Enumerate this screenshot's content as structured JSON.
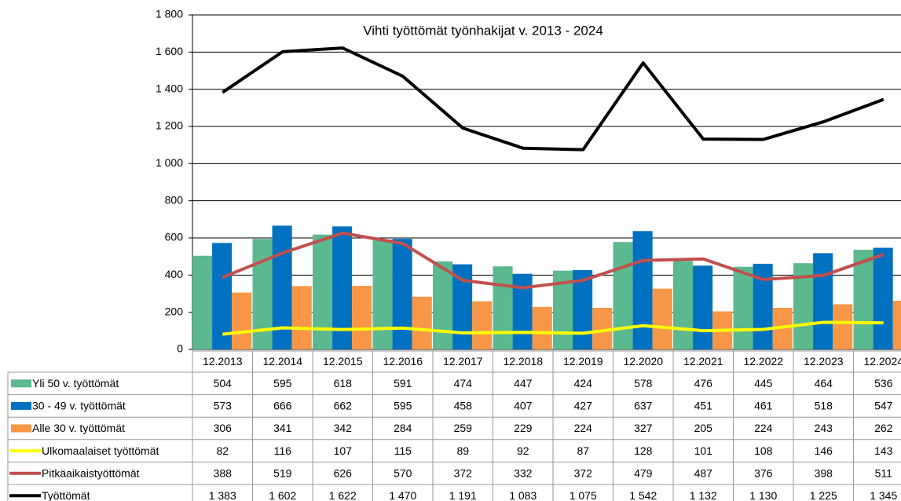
{
  "chart_data": {
    "type": "bar",
    "title": "Vihti työttömät työnhakijat v. 2013 - 2024",
    "categories": [
      "12.2013",
      "12.2014",
      "12.2015",
      "12.2016",
      "12.2017",
      "12.2018",
      "12.2019",
      "12.2020",
      "12.2021",
      "12.2022",
      "12.2023",
      "12.2024"
    ],
    "ylim": [
      0,
      1800
    ],
    "yticks": [
      0,
      200,
      400,
      600,
      800,
      {
        "value": 1000,
        "label": "1 000"
      },
      {
        "value": 1200,
        "label": "1 200"
      },
      {
        "value": 1400,
        "label": "1 400"
      },
      {
        "value": 1600,
        "label": "1 600"
      },
      {
        "value": 1800,
        "label": "1 800"
      }
    ],
    "grid": true,
    "series": [
      {
        "name": "Yli 50 v. työttömät",
        "type": "bar",
        "color": "#5cb88e",
        "values": [
          504,
          595,
          618,
          591,
          474,
          447,
          424,
          578,
          476,
          445,
          464,
          536
        ]
      },
      {
        "name": "30 - 49 v. työttömät",
        "type": "bar",
        "color": "#0070c0",
        "values": [
          573,
          666,
          662,
          595,
          458,
          407,
          427,
          637,
          451,
          461,
          518,
          547
        ]
      },
      {
        "name": "Alle 30 v. työttömät",
        "type": "bar",
        "color": "#f79646",
        "values": [
          306,
          341,
          342,
          284,
          259,
          229,
          224,
          327,
          205,
          224,
          243,
          262
        ]
      },
      {
        "name": "Ulkomaalaiset työttömät",
        "type": "line",
        "color": "#ffff00",
        "values": [
          82,
          116,
          107,
          115,
          89,
          92,
          87,
          128,
          101,
          108,
          146,
          143
        ]
      },
      {
        "name": "Pitkäaikaistyöttömät",
        "type": "line",
        "color": "#c0504d",
        "values": [
          388,
          519,
          626,
          570,
          372,
          332,
          372,
          479,
          487,
          376,
          398,
          511
        ]
      },
      {
        "name": "Työttömät",
        "type": "line",
        "color": "#000000",
        "values": [
          1383,
          1602,
          1622,
          1470,
          1191,
          1083,
          1075,
          1542,
          1132,
          1130,
          1225,
          1345
        ],
        "value_labels": [
          "1 383",
          "1 602",
          "1 622",
          "1 470",
          "1 191",
          "1 083",
          "1 075",
          "1 542",
          "1 132",
          "1 130",
          "1 225",
          "1 345"
        ]
      }
    ]
  }
}
